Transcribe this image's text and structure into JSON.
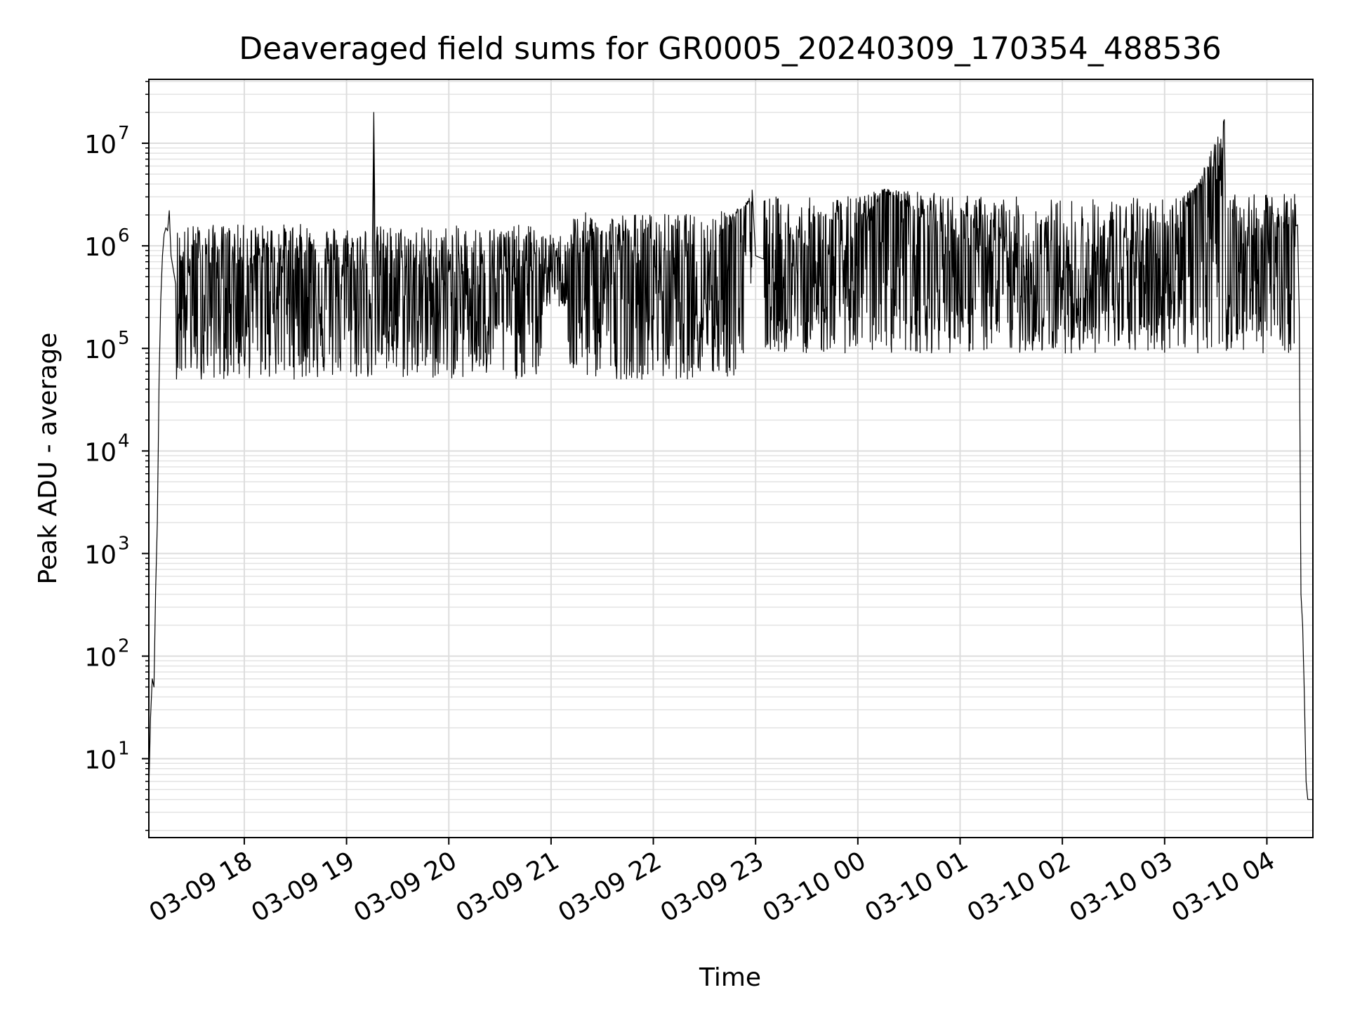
{
  "chart_data": {
    "type": "line",
    "title": "Deaveraged field sums for GR0005_20240309_170354_488536",
    "xlabel": "Time",
    "ylabel": "Peak ADU - average",
    "yscale": "log",
    "ylim": [
      1.7,
      42000000
    ],
    "xlim": [
      "2024-03-09 17:04",
      "2024-03-10 04:27"
    ],
    "grid": true,
    "grid_minor": true,
    "line_color": "#000000",
    "x_ticks": [
      {
        "t": "2024-03-09 18:00",
        "label": "03-09 18"
      },
      {
        "t": "2024-03-09 19:00",
        "label": "03-09 19"
      },
      {
        "t": "2024-03-09 20:00",
        "label": "03-09 20"
      },
      {
        "t": "2024-03-09 21:00",
        "label": "03-09 21"
      },
      {
        "t": "2024-03-09 22:00",
        "label": "03-09 22"
      },
      {
        "t": "2024-03-09 23:00",
        "label": "03-09 23"
      },
      {
        "t": "2024-03-10 00:00",
        "label": "03-10 00"
      },
      {
        "t": "2024-03-10 01:00",
        "label": "03-10 01"
      },
      {
        "t": "2024-03-10 02:00",
        "label": "03-10 02"
      },
      {
        "t": "2024-03-10 03:00",
        "label": "03-10 03"
      },
      {
        "t": "2024-03-10 04:00",
        "label": "03-10 04"
      }
    ],
    "y_ticks": [
      {
        "value": 10,
        "base": "10",
        "exp": "1"
      },
      {
        "value": 100,
        "base": "10",
        "exp": "2"
      },
      {
        "value": 1000,
        "base": "10",
        "exp": "3"
      },
      {
        "value": 10000,
        "base": "10",
        "exp": "4"
      },
      {
        "value": 100000,
        "base": "10",
        "exp": "5"
      },
      {
        "value": 1000000,
        "base": "10",
        "exp": "6"
      },
      {
        "value": 10000000,
        "base": "10",
        "exp": "7"
      }
    ],
    "series": [
      {
        "points": [
          [
            "2024-03-09 17:04",
            5
          ],
          [
            "2024-03-09 17:05",
            25
          ],
          [
            "2024-03-09 17:06",
            60
          ],
          [
            "2024-03-09 17:07",
            50
          ],
          [
            "2024-03-09 17:08",
            450
          ],
          [
            "2024-03-09 17:09",
            2000
          ],
          [
            "2024-03-09 17:10",
            50000
          ],
          [
            "2024-03-09 17:11",
            300000
          ],
          [
            "2024-03-09 17:12",
            800000
          ],
          [
            "2024-03-09 17:13",
            1300000
          ],
          [
            "2024-03-09 17:14",
            1500000
          ],
          [
            "2024-03-09 17:15",
            1400000
          ],
          [
            "2024-03-09 17:16",
            2200000
          ],
          [
            "2024-03-09 17:17",
            800000
          ],
          [
            "2024-03-09 17:20",
            400000
          ],
          [
            "2024-03-09 17:30",
            600000
          ],
          [
            "2024-03-09 18:00",
            600000
          ],
          [
            "2024-03-09 18:30",
            700000
          ],
          [
            "2024-03-09 19:00",
            500000
          ],
          [
            "2024-03-09 19:15",
            500000
          ],
          [
            "2024-03-09 19:16",
            20000000
          ],
          [
            "2024-03-09 19:17",
            500000
          ],
          [
            "2024-03-09 20:00",
            450000
          ],
          [
            "2024-03-09 21:00",
            600000
          ],
          [
            "2024-03-09 21:30",
            700000
          ],
          [
            "2024-03-09 22:00",
            600000
          ],
          [
            "2024-03-09 22:30",
            500000
          ],
          [
            "2024-03-09 22:58",
            3500000
          ],
          [
            "2024-03-09 23:00",
            800000
          ],
          [
            "2024-03-09 23:30",
            500000
          ],
          [
            "2024-03-10 00:00",
            800000
          ],
          [
            "2024-03-10 00:15",
            3500000
          ],
          [
            "2024-03-10 01:00",
            900000
          ],
          [
            "2024-03-10 02:00",
            450000
          ],
          [
            "2024-03-10 02:30",
            500000
          ],
          [
            "2024-03-10 03:00",
            700000
          ],
          [
            "2024-03-10 03:35",
            17000000
          ],
          [
            "2024-03-10 03:36",
            900000
          ],
          [
            "2024-03-10 04:00",
            1000000
          ],
          [
            "2024-03-10 04:15",
            1500000
          ],
          [
            "2024-03-10 04:18",
            1600000
          ],
          [
            "2024-03-10 04:19",
            200000
          ],
          [
            "2024-03-10 04:20",
            400
          ],
          [
            "2024-03-10 04:21",
            200
          ],
          [
            "2024-03-10 04:22",
            40
          ],
          [
            "2024-03-10 04:23",
            6
          ],
          [
            "2024-03-10 04:24",
            4
          ],
          [
            "2024-03-10 04:27",
            4
          ]
        ],
        "noise_band": [
          {
            "from": "2024-03-09 17:20",
            "to": "2024-03-09 20:55",
            "low": 50000,
            "high": 1800000
          },
          {
            "from": "2024-03-09 20:55",
            "to": "2024-03-09 21:10",
            "low": 250000,
            "high": 1400000
          },
          {
            "from": "2024-03-09 21:10",
            "to": "2024-03-09 22:58",
            "low": 50000,
            "high": 2400000
          },
          {
            "from": "2024-03-09 23:05",
            "to": "2024-03-10 04:17",
            "low": 90000,
            "high": 3600000
          }
        ]
      }
    ]
  }
}
